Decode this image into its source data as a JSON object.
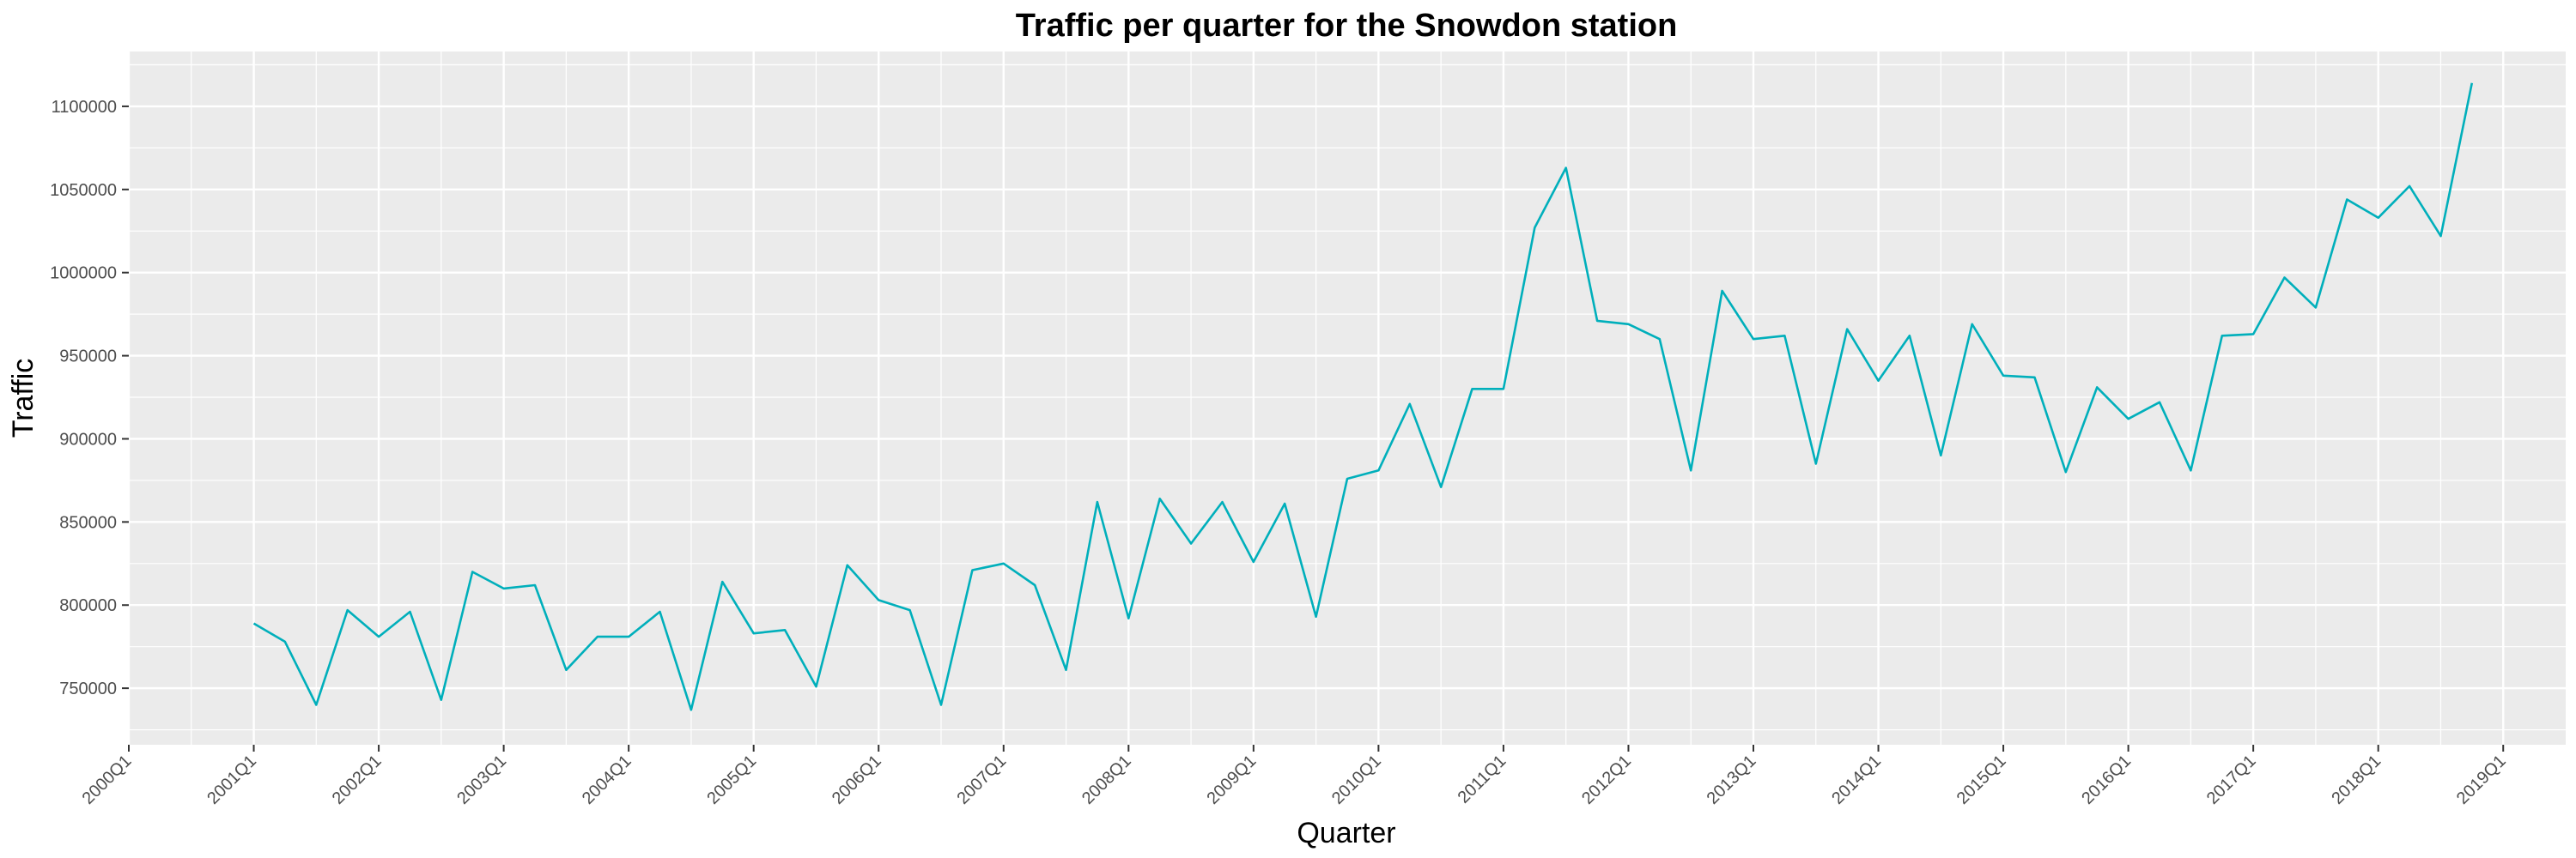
{
  "chart_data": {
    "type": "line",
    "title": "Traffic per quarter for the Snowdon station",
    "xlabel": "Quarter",
    "ylabel": "Traffic",
    "x_tick_labels": [
      "2000Q1",
      "2001Q1",
      "2002Q1",
      "2003Q1",
      "2004Q1",
      "2005Q1",
      "2006Q1",
      "2007Q1",
      "2008Q1",
      "2009Q1",
      "2010Q1",
      "2011Q1",
      "2012Q1",
      "2013Q1",
      "2014Q1",
      "2015Q1",
      "2016Q1",
      "2017Q1",
      "2018Q1",
      "2019Q1"
    ],
    "y_ticks": [
      750000,
      800000,
      850000,
      900000,
      950000,
      1000000,
      1050000,
      1100000
    ],
    "y_tick_labels": [
      "750000",
      "800000",
      "850000",
      "900000",
      "950000",
      "1000000",
      "1050000",
      "1100000"
    ],
    "xlim": [
      "2000Q1",
      "2019Q3"
    ],
    "ylim": [
      716000,
      1133000
    ],
    "grid": true,
    "colors": {
      "line": "#00AFBB",
      "panel": "#EBEBEB",
      "grid": "#FFFFFF"
    },
    "series": [
      {
        "x": [
          "2001Q1",
          "2001Q2",
          "2001Q3",
          "2001Q4",
          "2002Q1",
          "2002Q2",
          "2002Q3",
          "2002Q4",
          "2003Q1",
          "2003Q2",
          "2003Q3",
          "2003Q4",
          "2004Q1",
          "2004Q2",
          "2004Q3",
          "2004Q4",
          "2005Q1",
          "2005Q2",
          "2005Q3",
          "2005Q4",
          "2006Q1",
          "2006Q2",
          "2006Q3",
          "2006Q4",
          "2007Q1",
          "2007Q2",
          "2007Q3",
          "2007Q4",
          "2008Q1",
          "2008Q2",
          "2008Q3",
          "2008Q4",
          "2009Q1",
          "2009Q2",
          "2009Q3",
          "2009Q4",
          "2010Q1",
          "2010Q2",
          "2010Q3",
          "2010Q4",
          "2011Q1",
          "2011Q2",
          "2011Q3",
          "2011Q4",
          "2012Q1",
          "2012Q2",
          "2012Q3",
          "2012Q4",
          "2013Q1",
          "2013Q2",
          "2013Q3",
          "2013Q4",
          "2014Q1",
          "2014Q2",
          "2014Q3",
          "2014Q4",
          "2015Q1",
          "2015Q2",
          "2015Q3",
          "2015Q4",
          "2016Q1",
          "2016Q2",
          "2016Q3",
          "2016Q4",
          "2017Q1",
          "2017Q2",
          "2017Q3",
          "2017Q4",
          "2018Q1",
          "2018Q2",
          "2018Q3",
          "2018Q4"
        ],
        "values": [
          789000,
          778000,
          740000,
          797000,
          781000,
          796000,
          743000,
          820000,
          810000,
          812000,
          761000,
          781000,
          781000,
          796000,
          737000,
          814000,
          783000,
          785000,
          751000,
          824000,
          803000,
          797000,
          740000,
          821000,
          825000,
          812000,
          761000,
          862000,
          792000,
          864000,
          837000,
          862000,
          826000,
          861000,
          793000,
          876000,
          881000,
          921000,
          871000,
          930000,
          930000,
          1027000,
          1063000,
          971000,
          969000,
          960000,
          881000,
          989000,
          960000,
          962000,
          885000,
          966000,
          935000,
          962000,
          890000,
          969000,
          938000,
          937000,
          880000,
          931000,
          912000,
          922000,
          881000,
          962000,
          963000,
          997000,
          979000,
          1044000,
          1033000,
          1052000,
          1022000,
          1114000
        ]
      }
    ]
  }
}
